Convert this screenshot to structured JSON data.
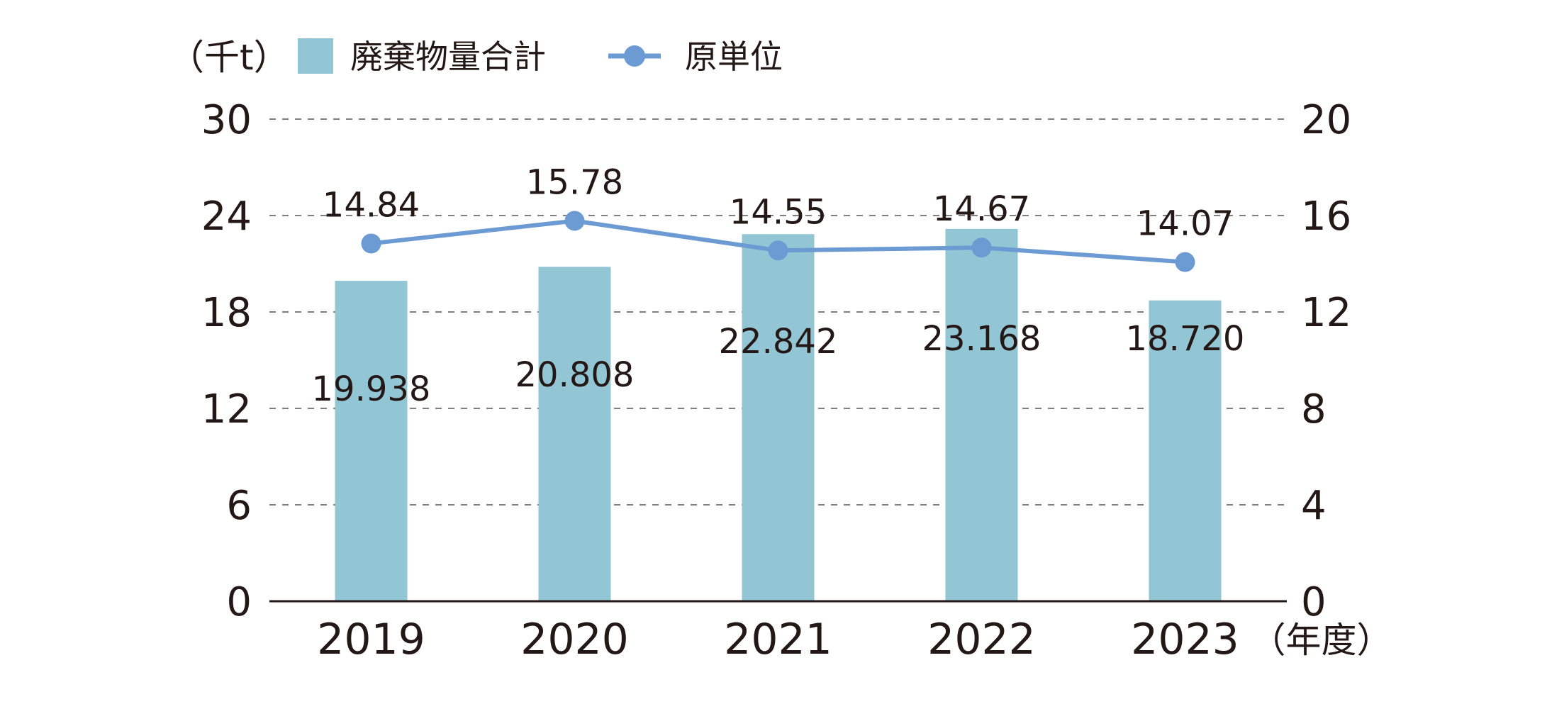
{
  "chart_data": {
    "type": "bar+line",
    "categories": [
      "2019",
      "2020",
      "2021",
      "2022",
      "2023"
    ],
    "x_unit_suffix": "（年度）",
    "y_left_unit": "（千t）",
    "series": [
      {
        "name": "廃棄物量合計",
        "type": "bar",
        "axis": "left",
        "values": [
          19.938,
          20.808,
          22.842,
          23.168,
          18.72
        ],
        "labels": [
          "19.938",
          "20.808",
          "22.842",
          "23.168",
          "18.720"
        ]
      },
      {
        "name": "原単位",
        "type": "line",
        "axis": "right",
        "values": [
          14.84,
          15.78,
          14.55,
          14.67,
          14.07
        ],
        "labels": [
          "14.84",
          "15.78",
          "14.55",
          "14.67",
          "14.07"
        ]
      }
    ],
    "y_left": {
      "range": [
        0,
        30
      ],
      "ticks": [
        "0",
        "6",
        "12",
        "18",
        "24",
        "30"
      ]
    },
    "y_right": {
      "range": [
        0,
        20
      ],
      "ticks": [
        "0",
        "4",
        "8",
        "12",
        "16",
        "20"
      ]
    },
    "grid": "dashed horizontal",
    "legend_position": "top-left",
    "colors": {
      "bar": "#93c6d4",
      "line": "#6b9bd2",
      "text": "#231815",
      "grid": "#7f7f7f"
    }
  }
}
